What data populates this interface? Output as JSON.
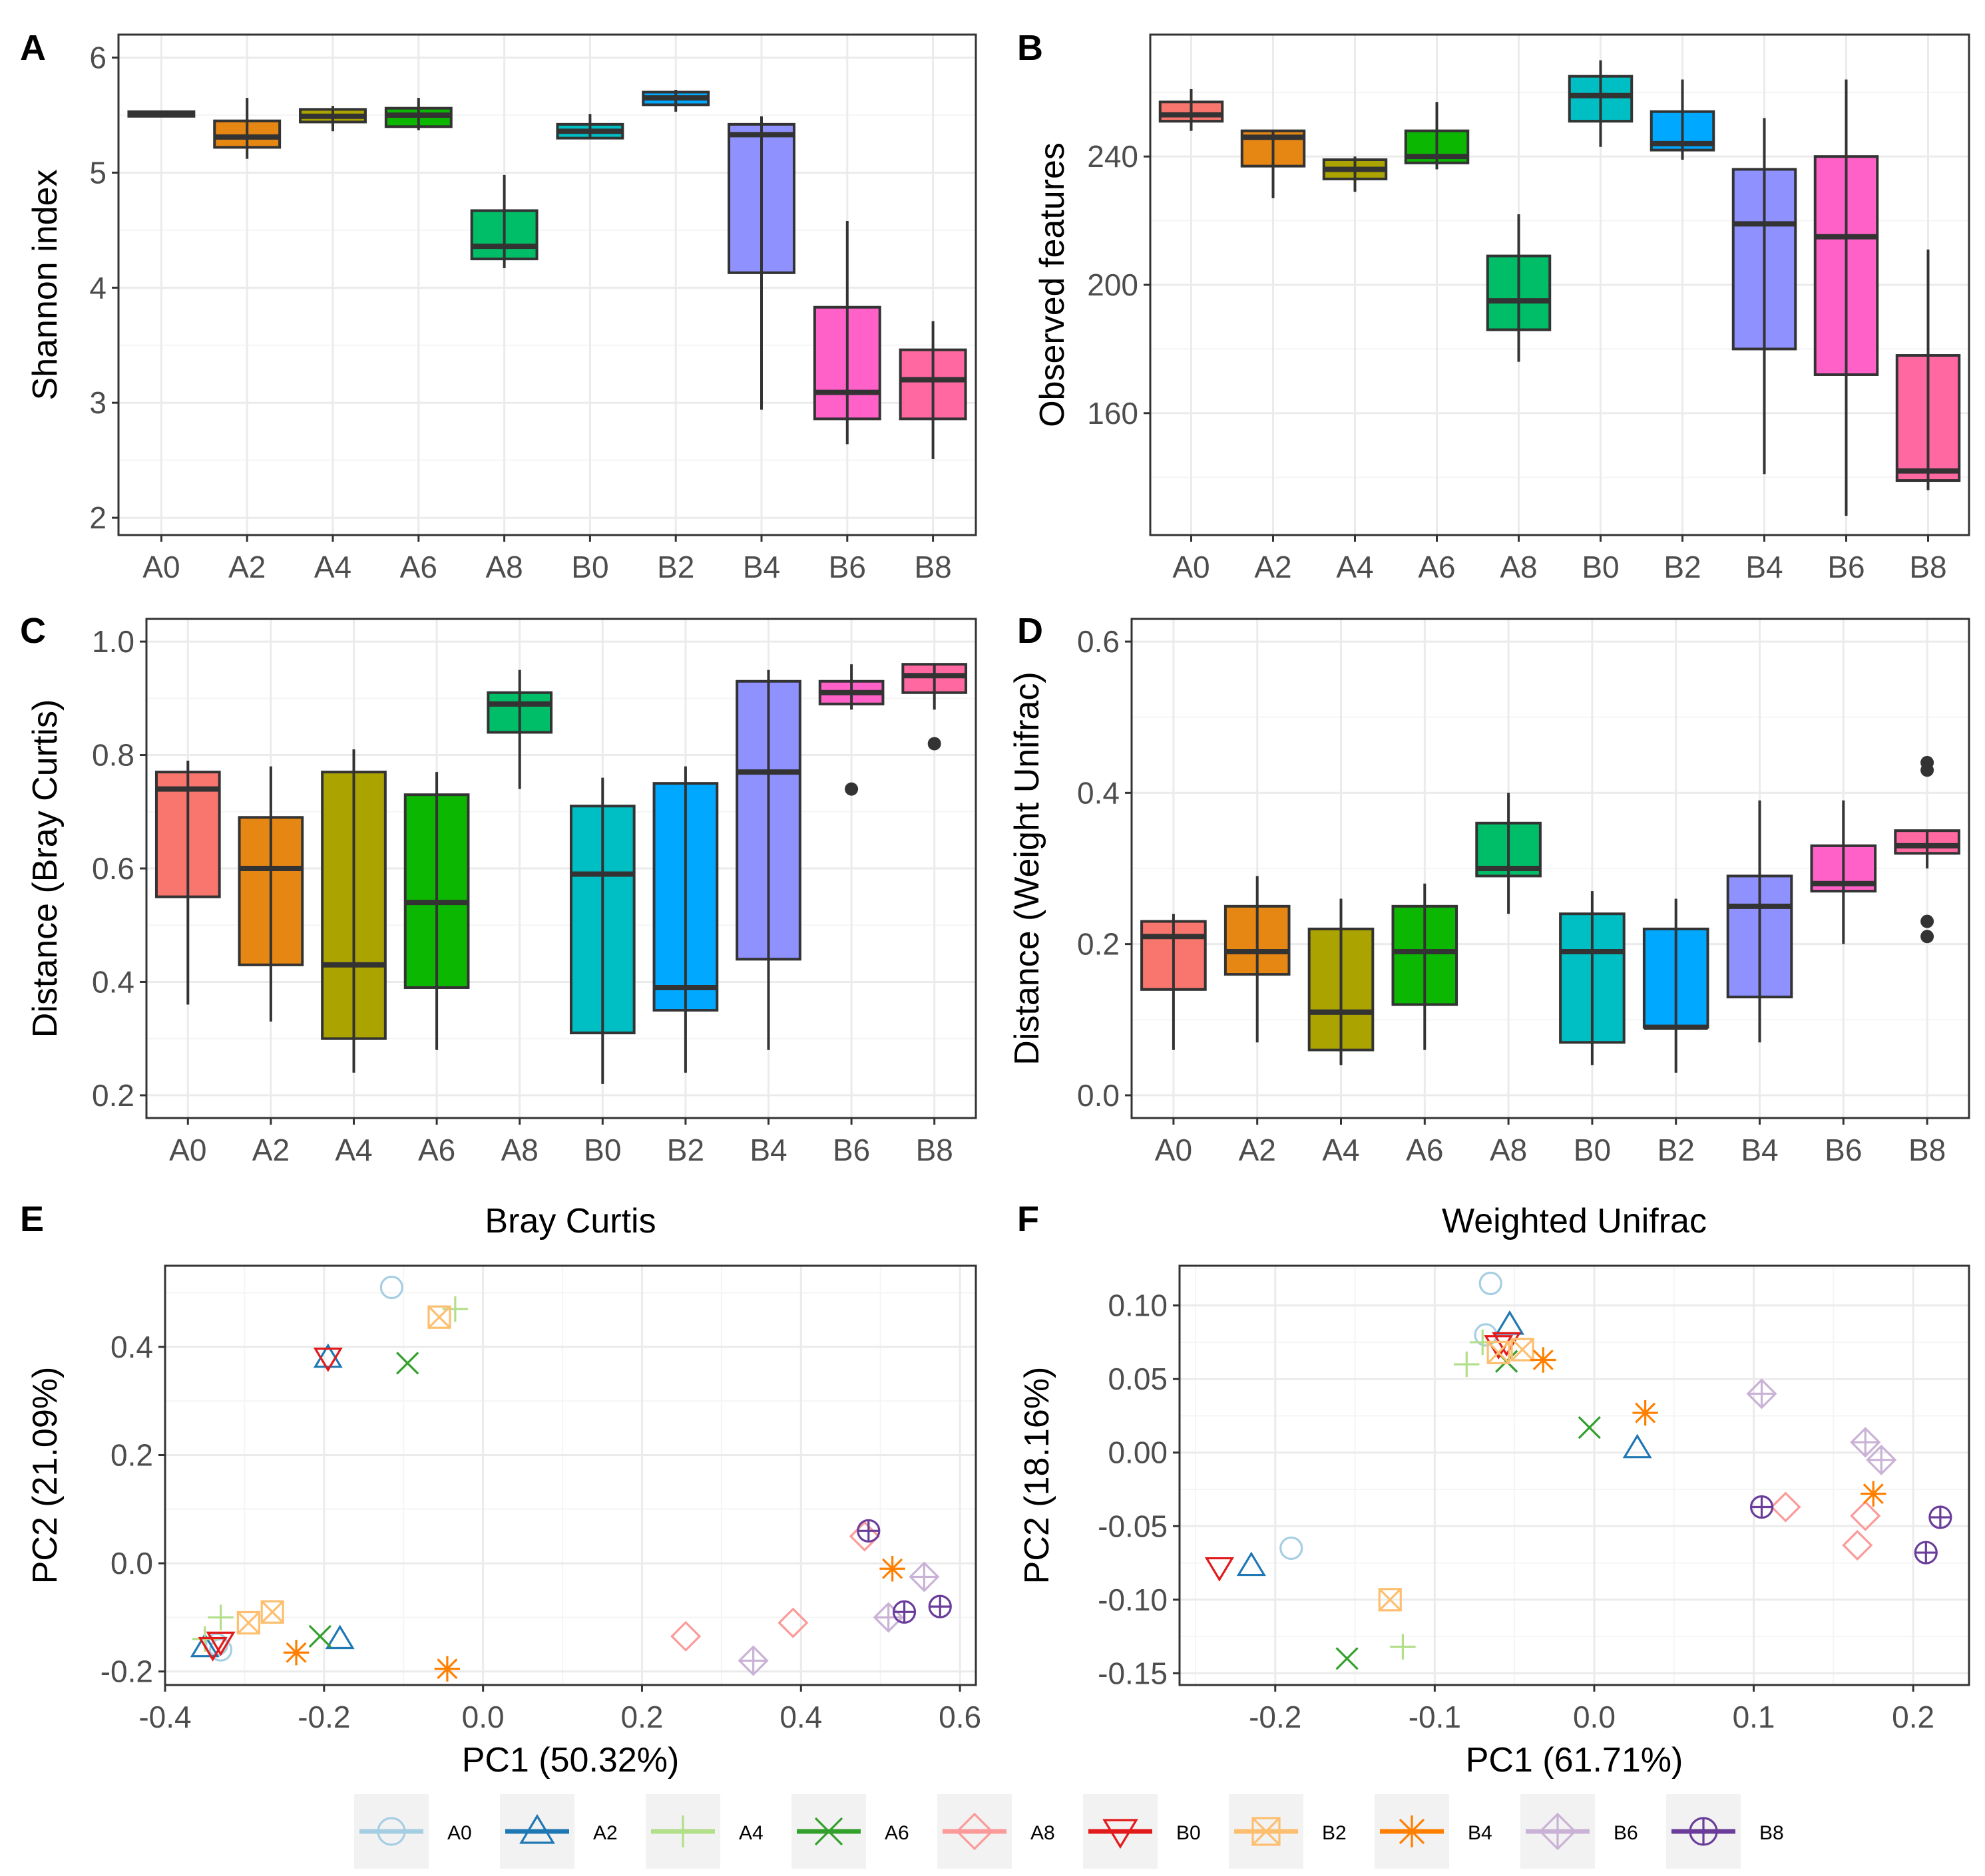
{
  "groups": [
    "A0",
    "A2",
    "A4",
    "A6",
    "A8",
    "B0",
    "B2",
    "B4",
    "B6",
    "B8"
  ],
  "colors": {
    "A0": "#A6CEE3",
    "A2": "#1F78B4",
    "A4": "#B2DF8A",
    "A6": "#33A02C",
    "A8": "#FB9A99",
    "B0": "#E31A1C",
    "B2": "#FDBF6F",
    "B4": "#FF7F00",
    "B6": "#CAB2D6",
    "B8": "#6A3D9A"
  },
  "box_fills": [
    "#F8766D",
    "#E68613",
    "#ABA300",
    "#0CB702",
    "#00BE67",
    "#00BFC4",
    "#00A9FF",
    "#8F91FF",
    "#FF61C9",
    "#FF68A1"
  ],
  "legend": {
    "items": [
      {
        "label": "A0",
        "shape": "circle"
      },
      {
        "label": "A2",
        "shape": "triangle"
      },
      {
        "label": "A4",
        "shape": "plus"
      },
      {
        "label": "A6",
        "shape": "cross"
      },
      {
        "label": "A8",
        "shape": "diamond"
      },
      {
        "label": "B0",
        "shape": "triangle-down"
      },
      {
        "label": "B2",
        "shape": "square-cross"
      },
      {
        "label": "B4",
        "shape": "asterisk"
      },
      {
        "label": "B6",
        "shape": "diamond-plus"
      },
      {
        "label": "B8",
        "shape": "circle-plus"
      }
    ]
  },
  "chart_data": [
    {
      "panel": "A",
      "type": "box",
      "title": "",
      "xlabel": "",
      "ylabel": "Shannon index",
      "ylim": [
        1.85,
        6.2
      ],
      "yticks": [
        2,
        3,
        4,
        5,
        6
      ],
      "categories": [
        "A0",
        "A2",
        "A4",
        "A6",
        "A8",
        "B0",
        "B2",
        "B4",
        "B6",
        "B8"
      ],
      "boxes": [
        {
          "min": 5.48,
          "q1": 5.49,
          "median": 5.51,
          "q3": 5.53,
          "max": 5.54,
          "outliers": []
        },
        {
          "min": 5.12,
          "q1": 5.22,
          "median": 5.31,
          "q3": 5.45,
          "max": 5.65,
          "outliers": []
        },
        {
          "min": 5.36,
          "q1": 5.44,
          "median": 5.49,
          "q3": 5.55,
          "max": 5.58,
          "outliers": []
        },
        {
          "min": 5.37,
          "q1": 5.4,
          "median": 5.5,
          "q3": 5.56,
          "max": 5.65,
          "outliers": []
        },
        {
          "min": 4.17,
          "q1": 4.25,
          "median": 4.36,
          "q3": 4.67,
          "max": 4.98,
          "outliers": []
        },
        {
          "min": 5.29,
          "q1": 5.3,
          "median": 5.36,
          "q3": 5.42,
          "max": 5.51,
          "outliers": []
        },
        {
          "min": 5.53,
          "q1": 5.59,
          "median": 5.65,
          "q3": 5.7,
          "max": 5.72,
          "outliers": []
        },
        {
          "min": 2.94,
          "q1": 4.13,
          "median": 5.33,
          "q3": 5.42,
          "max": 5.49,
          "outliers": []
        },
        {
          "min": 2.64,
          "q1": 2.86,
          "median": 3.09,
          "q3": 3.83,
          "max": 4.58,
          "outliers": []
        },
        {
          "min": 2.51,
          "q1": 2.86,
          "median": 3.2,
          "q3": 3.46,
          "max": 3.71,
          "outliers": []
        }
      ]
    },
    {
      "panel": "B",
      "type": "box",
      "title": "",
      "xlabel": "",
      "ylabel": "Observed features",
      "ylim": [
        122,
        278
      ],
      "yticks": [
        160,
        200,
        240
      ],
      "categories": [
        "A0",
        "A2",
        "A4",
        "A6",
        "A8",
        "B0",
        "B2",
        "B4",
        "B6",
        "B8"
      ],
      "boxes": [
        {
          "min": 248,
          "q1": 251,
          "median": 253,
          "q3": 257,
          "max": 261,
          "outliers": []
        },
        {
          "min": 227,
          "q1": 237,
          "median": 246,
          "q3": 248,
          "max": 248,
          "outliers": []
        },
        {
          "min": 229,
          "q1": 233,
          "median": 236,
          "q3": 239,
          "max": 240,
          "outliers": []
        },
        {
          "min": 236,
          "q1": 238,
          "median": 240,
          "q3": 248,
          "max": 257,
          "outliers": []
        },
        {
          "min": 176,
          "q1": 186,
          "median": 195,
          "q3": 209,
          "max": 222,
          "outliers": []
        },
        {
          "min": 243,
          "q1": 251,
          "median": 259,
          "q3": 265,
          "max": 270,
          "outliers": []
        },
        {
          "min": 239,
          "q1": 242,
          "median": 244,
          "q3": 254,
          "max": 264,
          "outliers": []
        },
        {
          "min": 141,
          "q1": 180,
          "median": 219,
          "q3": 236,
          "max": 252,
          "outliers": []
        },
        {
          "min": 128,
          "q1": 172,
          "median": 215,
          "q3": 240,
          "max": 264,
          "outliers": []
        },
        {
          "min": 136,
          "q1": 139,
          "median": 142,
          "q3": 178,
          "max": 211,
          "outliers": []
        }
      ]
    },
    {
      "panel": "C",
      "type": "box",
      "title": "",
      "xlabel": "",
      "ylabel": "Distance (Bray Curtis)",
      "ylim": [
        0.16,
        1.04
      ],
      "yticks": [
        0.2,
        0.4,
        0.6,
        0.8,
        1.0
      ],
      "ytick_labels": [
        "0.2",
        "0.4",
        "0.6",
        "0.8",
        "1.0"
      ],
      "categories": [
        "A0",
        "A2",
        "A4",
        "A6",
        "A8",
        "B0",
        "B2",
        "B4",
        "B6",
        "B8"
      ],
      "boxes": [
        {
          "min": 0.36,
          "q1": 0.55,
          "median": 0.74,
          "q3": 0.77,
          "max": 0.79,
          "outliers": []
        },
        {
          "min": 0.33,
          "q1": 0.43,
          "median": 0.6,
          "q3": 0.69,
          "max": 0.78,
          "outliers": []
        },
        {
          "min": 0.24,
          "q1": 0.3,
          "median": 0.43,
          "q3": 0.77,
          "max": 0.81,
          "outliers": []
        },
        {
          "min": 0.28,
          "q1": 0.39,
          "median": 0.54,
          "q3": 0.73,
          "max": 0.77,
          "outliers": []
        },
        {
          "min": 0.74,
          "q1": 0.84,
          "median": 0.89,
          "q3": 0.91,
          "max": 0.95,
          "outliers": []
        },
        {
          "min": 0.22,
          "q1": 0.31,
          "median": 0.59,
          "q3": 0.71,
          "max": 0.76,
          "outliers": []
        },
        {
          "min": 0.24,
          "q1": 0.35,
          "median": 0.39,
          "q3": 0.75,
          "max": 0.78,
          "outliers": []
        },
        {
          "min": 0.28,
          "q1": 0.44,
          "median": 0.77,
          "q3": 0.93,
          "max": 0.95,
          "outliers": []
        },
        {
          "min": 0.88,
          "q1": 0.89,
          "median": 0.91,
          "q3": 0.93,
          "max": 0.96,
          "outliers": [
            0.74
          ]
        },
        {
          "min": 0.88,
          "q1": 0.91,
          "median": 0.94,
          "q3": 0.96,
          "max": 0.96,
          "outliers": [
            0.82
          ]
        }
      ]
    },
    {
      "panel": "D",
      "type": "box",
      "title": "",
      "xlabel": "",
      "ylabel": "Distance (Weight Unifrac)",
      "ylim": [
        -0.03,
        0.63
      ],
      "yticks": [
        0.0,
        0.2,
        0.4,
        0.6
      ],
      "ytick_labels": [
        "0.0",
        "0.2",
        "0.4",
        "0.6"
      ],
      "categories": [
        "A0",
        "A2",
        "A4",
        "A6",
        "A8",
        "B0",
        "B2",
        "B4",
        "B6",
        "B8"
      ],
      "boxes": [
        {
          "min": 0.06,
          "q1": 0.14,
          "median": 0.21,
          "q3": 0.23,
          "max": 0.24,
          "outliers": []
        },
        {
          "min": 0.07,
          "q1": 0.16,
          "median": 0.19,
          "q3": 0.25,
          "max": 0.29,
          "outliers": []
        },
        {
          "min": 0.04,
          "q1": 0.06,
          "median": 0.11,
          "q3": 0.22,
          "max": 0.26,
          "outliers": []
        },
        {
          "min": 0.06,
          "q1": 0.12,
          "median": 0.19,
          "q3": 0.25,
          "max": 0.28,
          "outliers": []
        },
        {
          "min": 0.24,
          "q1": 0.29,
          "median": 0.3,
          "q3": 0.36,
          "max": 0.4,
          "outliers": []
        },
        {
          "min": 0.04,
          "q1": 0.07,
          "median": 0.19,
          "q3": 0.24,
          "max": 0.27,
          "outliers": []
        },
        {
          "min": 0.03,
          "q1": 0.09,
          "median": 0.09,
          "q3": 0.22,
          "max": 0.26,
          "outliers": []
        },
        {
          "min": 0.07,
          "q1": 0.13,
          "median": 0.25,
          "q3": 0.29,
          "max": 0.39,
          "outliers": []
        },
        {
          "min": 0.2,
          "q1": 0.27,
          "median": 0.28,
          "q3": 0.33,
          "max": 0.39,
          "outliers": []
        },
        {
          "min": 0.3,
          "q1": 0.32,
          "median": 0.33,
          "q3": 0.35,
          "max": 0.35,
          "outliers": [
            0.43,
            0.44,
            0.23,
            0.21
          ]
        }
      ]
    },
    {
      "panel": "E",
      "type": "scatter",
      "title": "Bray Curtis",
      "xlabel": "PC1 (50.32%)",
      "ylabel": "PC2 (21.09%)",
      "xlim": [
        -0.4,
        0.62
      ],
      "ylim": [
        -0.225,
        0.55
      ],
      "xticks": [
        -0.4,
        -0.2,
        0.0,
        0.2,
        0.4,
        0.6
      ],
      "xtick_labels": [
        "-0.4",
        "-0.2",
        "0.0",
        "0.2",
        "0.4",
        "0.6"
      ],
      "yticks": [
        -0.2,
        0.0,
        0.2,
        0.4
      ],
      "ytick_labels": [
        "-0.2",
        "0.0",
        "0.2",
        "0.4"
      ],
      "points": [
        {
          "g": "A0",
          "x": -0.115,
          "y": 0.51
        },
        {
          "g": "A0",
          "x": -0.335,
          "y": -0.15
        },
        {
          "g": "A0",
          "x": -0.33,
          "y": -0.16
        },
        {
          "g": "A2",
          "x": -0.195,
          "y": 0.38
        },
        {
          "g": "A2",
          "x": -0.18,
          "y": -0.14
        },
        {
          "g": "A2",
          "x": -0.35,
          "y": -0.155
        },
        {
          "g": "A4",
          "x": -0.035,
          "y": 0.47
        },
        {
          "g": "A4",
          "x": -0.33,
          "y": -0.1
        },
        {
          "g": "A4",
          "x": -0.35,
          "y": -0.14
        },
        {
          "g": "A6",
          "x": -0.095,
          "y": 0.37
        },
        {
          "g": "A6",
          "x": -0.205,
          "y": -0.135
        },
        {
          "g": "A8",
          "x": 0.255,
          "y": -0.135
        },
        {
          "g": "A8",
          "x": 0.39,
          "y": -0.11
        },
        {
          "g": "A8",
          "x": 0.48,
          "y": 0.05
        },
        {
          "g": "B0",
          "x": -0.195,
          "y": 0.38
        },
        {
          "g": "B0",
          "x": -0.33,
          "y": -0.145
        },
        {
          "g": "B0",
          "x": -0.34,
          "y": -0.155
        },
        {
          "g": "B2",
          "x": -0.055,
          "y": 0.455
        },
        {
          "g": "B2",
          "x": -0.265,
          "y": -0.09
        },
        {
          "g": "B2",
          "x": -0.295,
          "y": -0.11
        },
        {
          "g": "B4",
          "x": -0.045,
          "y": -0.195
        },
        {
          "g": "B4",
          "x": -0.235,
          "y": -0.165
        },
        {
          "g": "B4",
          "x": 0.515,
          "y": -0.01
        },
        {
          "g": "B6",
          "x": 0.34,
          "y": -0.18
        },
        {
          "g": "B6",
          "x": 0.555,
          "y": -0.025
        },
        {
          "g": "B6",
          "x": 0.51,
          "y": -0.1
        },
        {
          "g": "B8",
          "x": 0.485,
          "y": 0.06
        },
        {
          "g": "B8",
          "x": 0.53,
          "y": -0.09
        },
        {
          "g": "B8",
          "x": 0.575,
          "y": -0.08
        }
      ]
    },
    {
      "panel": "F",
      "type": "scatter",
      "title": "Weighted Unifrac",
      "xlabel": "PC1 (61.71%)",
      "ylabel": "PC2 (18.16%)",
      "xlim": [
        -0.26,
        0.235
      ],
      "ylim": [
        -0.158,
        0.127
      ],
      "xticks": [
        -0.2,
        -0.1,
        0.0,
        0.1,
        0.2
      ],
      "xtick_labels": [
        "-0.2",
        "-0.1",
        "0.0",
        "0.1",
        "0.2"
      ],
      "yticks": [
        -0.15,
        -0.1,
        -0.05,
        0.0,
        0.05,
        0.1
      ],
      "ytick_labels": [
        "-0.15",
        "-0.10",
        "-0.05",
        "0.00",
        "0.05",
        "0.10"
      ],
      "points": [
        {
          "g": "A0",
          "x": -0.065,
          "y": 0.115
        },
        {
          "g": "A0",
          "x": -0.19,
          "y": -0.065
        },
        {
          "g": "A0",
          "x": -0.068,
          "y": 0.08
        },
        {
          "g": "A2",
          "x": -0.053,
          "y": 0.087
        },
        {
          "g": "A2",
          "x": -0.215,
          "y": -0.077
        },
        {
          "g": "A2",
          "x": 0.027,
          "y": 0.003
        },
        {
          "g": "A4",
          "x": -0.08,
          "y": 0.06
        },
        {
          "g": "A4",
          "x": -0.12,
          "y": -0.132
        },
        {
          "g": "A4",
          "x": -0.07,
          "y": 0.075
        },
        {
          "g": "A6",
          "x": -0.155,
          "y": -0.14
        },
        {
          "g": "A6",
          "x": -0.003,
          "y": 0.017
        },
        {
          "g": "A6",
          "x": -0.055,
          "y": 0.062
        },
        {
          "g": "A8",
          "x": 0.12,
          "y": -0.037
        },
        {
          "g": "A8",
          "x": 0.165,
          "y": -0.063
        },
        {
          "g": "A8",
          "x": 0.17,
          "y": -0.043
        },
        {
          "g": "B0",
          "x": -0.235,
          "y": -0.078
        },
        {
          "g": "B0",
          "x": -0.06,
          "y": 0.073
        },
        {
          "g": "B0",
          "x": -0.055,
          "y": 0.075
        },
        {
          "g": "B2",
          "x": -0.128,
          "y": -0.1
        },
        {
          "g": "B2",
          "x": -0.045,
          "y": 0.07
        },
        {
          "g": "B2",
          "x": -0.06,
          "y": 0.068
        },
        {
          "g": "B4",
          "x": 0.032,
          "y": 0.027
        },
        {
          "g": "B4",
          "x": -0.032,
          "y": 0.063
        },
        {
          "g": "B4",
          "x": 0.175,
          "y": -0.028
        },
        {
          "g": "B6",
          "x": 0.105,
          "y": 0.04
        },
        {
          "g": "B6",
          "x": 0.17,
          "y": 0.007
        },
        {
          "g": "B6",
          "x": 0.18,
          "y": -0.005
        },
        {
          "g": "B8",
          "x": 0.105,
          "y": -0.037
        },
        {
          "g": "B8",
          "x": 0.208,
          "y": -0.068
        },
        {
          "g": "B8",
          "x": 0.217,
          "y": -0.044
        }
      ]
    }
  ],
  "panel_labels": [
    "A",
    "B",
    "C",
    "D",
    "E",
    "F"
  ]
}
